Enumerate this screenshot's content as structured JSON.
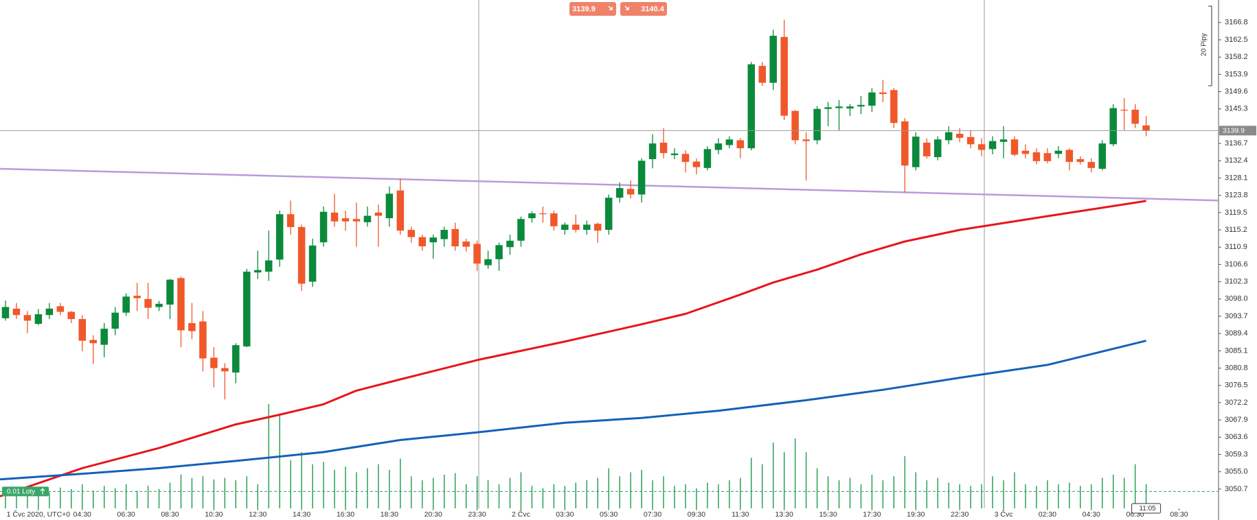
{
  "chart_data": {
    "type": "candlestick",
    "bid": 3139.9,
    "ask": 3140.4,
    "pip_scale_label": "20 Pipy",
    "current_time": "11:05",
    "position": {
      "label": "0.01 Loty",
      "price": 3050.1
    },
    "xlim": [
      -0.5,
      110.6
    ],
    "ylim": [
      3045.9,
      3172.4
    ],
    "yticks": [
      3050.7,
      {
        "value": 3055,
        "label": "3055.0"
      },
      3059.3,
      3063.6,
      3067.9,
      3072.2,
      3076.5,
      3080.8,
      3085.1,
      3089.4,
      3093.7,
      {
        "value": 3098,
        "label": "3098.0"
      },
      3102.3,
      3106.6,
      3110.9,
      3115.2,
      3119.5,
      3123.8,
      3128.1,
      3132.4,
      3136.7,
      3145.3,
      3149.6,
      3153.9,
      3158.2,
      3162.5,
      3166.8
    ],
    "xticks": [
      {
        "value": 3,
        "label": "1 Čvc 2020, UTC+0"
      },
      {
        "value": 7,
        "label": "04:30"
      },
      {
        "value": 11,
        "label": "06:30"
      },
      {
        "value": 15,
        "label": "08:30"
      },
      {
        "value": 19,
        "label": "10:30"
      },
      {
        "value": 23,
        "label": "12:30"
      },
      {
        "value": 27,
        "label": "14:30"
      },
      {
        "value": 31,
        "label": "16:30"
      },
      {
        "value": 35,
        "label": "18:30"
      },
      {
        "value": 39,
        "label": "20:30"
      },
      {
        "value": 43,
        "label": "23:30"
      },
      {
        "value": 47,
        "label": "2 Čvc"
      },
      {
        "value": 51,
        "label": "03:30"
      },
      {
        "value": 55,
        "label": "05:30"
      },
      {
        "value": 59,
        "label": "07:30"
      },
      {
        "value": 63,
        "label": "09:30"
      },
      {
        "value": 67,
        "label": "11:30"
      },
      {
        "value": 71,
        "label": "13:30"
      },
      {
        "value": 75,
        "label": "15:30"
      },
      {
        "value": 79,
        "label": "17:30"
      },
      {
        "value": 83,
        "label": "19:30"
      },
      {
        "value": 87,
        "label": "22:30"
      },
      {
        "value": 91,
        "label": "3 Čvc"
      },
      {
        "value": 95,
        "label": "02:30"
      },
      {
        "value": 99,
        "label": "04:30"
      },
      {
        "value": 103,
        "label": "06:30"
      },
      {
        "value": 107,
        "label": "08:30"
      }
    ],
    "up_color": "#0b8a3c",
    "down_color": "#f0582a",
    "open": [
      3093.2,
      3095.6,
      3094.0,
      3091.8,
      3094.0,
      3096.2,
      3094.8,
      3093.0,
      3087.8,
      3086.6,
      3090.6,
      3094.6,
      3098.8,
      3098.0,
      3096.0,
      3096.6,
      3103.2,
      3092.0,
      3092.4,
      3083.4,
      3080.8,
      3079.7,
      3086.2,
      3104.6,
      3104.8,
      3107.8,
      3119.1,
      3115.9,
      3102.3,
      3112.1,
      3119.5,
      3118.1,
      3117.9,
      3117.1,
      3119.5,
      3118.1,
      3125.0,
      3115.2,
      3113.4,
      3112.1,
      3112.9,
      3115.4,
      3112.3,
      3111.7,
      3106.4,
      3107.9,
      3110.9,
      3112.5,
      3118.1,
      3119.3,
      3119.3,
      3115.2,
      3116.5,
      3115.2,
      3116.7,
      3115.2,
      3123.2,
      3125.4,
      3124.0,
      3132.8,
      3136.9,
      3133.8,
      3134.1,
      3132.2,
      3130.6,
      3135.1,
      3136.3,
      3137.5,
      3135.5,
      3156.0,
      3151.8,
      3163.2,
      3144.8,
      3137.7,
      3137.5,
      3145.3,
      3145.5,
      3145.4,
      3145.9,
      3146.1,
      3149.4,
      3150.0,
      3142.2,
      3130.8,
      3136.9,
      3133.3,
      3137.5,
      3139.1,
      3138.3,
      3136.5,
      3135.3,
      3137.1,
      3137.7,
      3134.9,
      3134.5,
      3134.3,
      3134.1,
      3135.1,
      3132.8,
      3132.1,
      3130.4,
      3136.5,
      3145.1,
      3145.1,
      3141.2
    ],
    "high": [
      3097.6,
      3097.0,
      3095.0,
      3095.5,
      3097.0,
      3097.0,
      3095.0,
      3094.0,
      3089.0,
      3092.0,
      3096.0,
      3099.4,
      3102.0,
      3102.0,
      3097.5,
      3103.0,
      3103.6,
      3097.0,
      3095.0,
      3086.0,
      3082.0,
      3087.0,
      3105.5,
      3110.0,
      3115.0,
      3120.0,
      3122.5,
      3116.5,
      3113.0,
      3121.0,
      3124.2,
      3120.0,
      3122.0,
      3121.0,
      3121.5,
      3126.0,
      3128.0,
      3116.0,
      3114.0,
      3114.0,
      3116.0,
      3117.0,
      3113.0,
      3112.5,
      3110.0,
      3112.0,
      3114.0,
      3118.5,
      3119.8,
      3121.0,
      3120.0,
      3117.0,
      3119.0,
      3117.5,
      3117.0,
      3124.0,
      3127.0,
      3127.5,
      3133.0,
      3139.0,
      3140.5,
      3135.5,
      3135.0,
      3133.0,
      3136.0,
      3138.0,
      3138.5,
      3138.0,
      3157.0,
      3157.0,
      3165.0,
      3167.5,
      3145.0,
      3139.5,
      3146.0,
      3147.0,
      3147.5,
      3146.5,
      3148.5,
      3150.5,
      3152.5,
      3150.5,
      3143.0,
      3139.5,
      3138.0,
      3138.5,
      3141.0,
      3140.5,
      3140.0,
      3138.0,
      3138.5,
      3141.0,
      3138.5,
      3136.5,
      3135.5,
      3135.5,
      3136.0,
      3135.5,
      3133.5,
      3133.0,
      3137.5,
      3146.5,
      3148.0,
      3146.5,
      3143.5
    ],
    "low": [
      3092.6,
      3093.0,
      3089.5,
      3091.5,
      3093.0,
      3094.0,
      3092.0,
      3085.0,
      3081.8,
      3083.5,
      3089.0,
      3093.8,
      3095.0,
      3093.0,
      3095.0,
      3093.0,
      3086.0,
      3088.0,
      3080.0,
      3076.0,
      3073.0,
      3077.0,
      3086.0,
      3103.0,
      3102.5,
      3106.0,
      3114.0,
      3100.0,
      3101.0,
      3111.0,
      3116.0,
      3115.0,
      3111.0,
      3116.0,
      3111.0,
      3116.0,
      3114.0,
      3112.0,
      3110.0,
      3108.0,
      3111.0,
      3110.0,
      3109.8,
      3105.0,
      3105.5,
      3105.0,
      3109.0,
      3111.0,
      3117.0,
      3117.0,
      3115.0,
      3114.0,
      3114.5,
      3114.0,
      3112.0,
      3114.0,
      3122.0,
      3123.0,
      3122.0,
      3130.5,
      3133.0,
      3132.8,
      3129.5,
      3129.0,
      3130.0,
      3134.0,
      3135.5,
      3133.0,
      3135.0,
      3151.0,
      3150.0,
      3142.5,
      3136.5,
      3127.5,
      3136.5,
      3141.0,
      3140.0,
      3143.5,
      3144.0,
      3144.5,
      3147.0,
      3140.5,
      3124.5,
      3130.0,
      3133.0,
      3132.5,
      3136.5,
      3137.0,
      3135.5,
      3133.5,
      3134.0,
      3133.0,
      3133.5,
      3133.0,
      3131.5,
      3131.8,
      3133.0,
      3130.0,
      3131.5,
      3129.5,
      3130.0,
      3136.0,
      3140.0,
      3140.5,
      3138.5
    ],
    "close": [
      3096.0,
      3094.0,
      3092.6,
      3094.2,
      3095.6,
      3094.8,
      3093.0,
      3087.6,
      3087.0,
      3090.6,
      3094.6,
      3098.6,
      3098.2,
      3095.8,
      3096.8,
      3102.8,
      3090.2,
      3090.0,
      3083.2,
      3080.8,
      3080.0,
      3086.5,
      3104.8,
      3105.2,
      3107.6,
      3119.1,
      3115.9,
      3101.8,
      3111.3,
      3119.7,
      3117.3,
      3117.3,
      3117.3,
      3118.7,
      3118.7,
      3124.2,
      3115.0,
      3113.4,
      3111.1,
      3113.3,
      3115.2,
      3111.1,
      3111.0,
      3106.8,
      3107.9,
      3111.4,
      3112.5,
      3117.9,
      3119.3,
      3119.1,
      3116.1,
      3116.5,
      3115.2,
      3116.5,
      3115.0,
      3123.2,
      3125.6,
      3124.0,
      3132.4,
      3136.7,
      3134.3,
      3134.2,
      3132.1,
      3130.8,
      3135.3,
      3136.7,
      3137.7,
      3135.5,
      3156.4,
      3151.8,
      3163.5,
      3143.6,
      3137.5,
      3137.3,
      3145.3,
      3145.7,
      3145.9,
      3145.9,
      3146.3,
      3149.4,
      3149.0,
      3141.8,
      3131.2,
      3138.4,
      3133.5,
      3137.7,
      3139.5,
      3138.1,
      3136.5,
      3135.1,
      3137.3,
      3137.7,
      3133.9,
      3134.1,
      3132.3,
      3132.3,
      3134.9,
      3132.1,
      3132.1,
      3130.6,
      3136.7,
      3145.5,
      3144.9,
      3141.6,
      3139.9
    ],
    "volume": [
      20,
      25,
      18,
      22,
      20,
      26,
      24,
      30,
      22,
      28,
      25,
      30,
      22,
      28,
      24,
      32,
      42,
      38,
      40,
      36,
      38,
      35,
      40,
      30,
      130,
      118,
      60,
      70,
      55,
      58,
      48,
      52,
      45,
      50,
      55,
      48,
      62,
      40,
      35,
      38,
      42,
      44,
      30,
      40,
      35,
      30,
      38,
      45,
      28,
      25,
      30,
      28,
      32,
      35,
      38,
      50,
      40,
      45,
      48,
      35,
      40,
      28,
      30,
      25,
      32,
      30,
      35,
      38,
      63,
      55,
      82,
      70,
      87,
      70,
      50,
      40,
      35,
      38,
      30,
      42,
      35,
      40,
      65,
      45,
      35,
      38,
      32,
      30,
      28,
      30,
      40,
      35,
      45,
      30,
      28,
      35,
      30,
      32,
      28,
      30,
      38,
      42,
      38,
      55,
      30
    ],
    "volume_color": "#1a9a4a",
    "series": [
      {
        "color": "#e8141a",
        "x": [
          -0.5,
          7,
          14,
          21,
          25,
          29,
          32,
          36,
          43,
          51,
          58,
          62,
          67,
          70,
          74,
          78,
          82,
          87,
          95,
          104
        ],
        "values": [
          3048.9,
          3055.9,
          3060.9,
          3066.8,
          3069.2,
          3071.8,
          3075.2,
          3078.0,
          3082.8,
          3087.4,
          3091.7,
          3094.3,
          3099.1,
          3102.1,
          3105.3,
          3109.1,
          3112.3,
          3115.2,
          3118.6,
          3122.4
        ]
      },
      {
        "color": "#1460b8",
        "x": [
          -0.5,
          7,
          14,
          21,
          29,
          36,
          43,
          51,
          58,
          65,
          73,
          80,
          87,
          95,
          104
        ],
        "values": [
          3053.1,
          3054.5,
          3055.9,
          3057.7,
          3059.9,
          3062.9,
          3064.8,
          3067.2,
          3068.4,
          3070.2,
          3072.8,
          3075.4,
          3078.4,
          3081.6,
          3087.6
        ]
      }
    ],
    "trendline": {
      "color": "#b89cd8",
      "x": [
        -0.5,
        110.6
      ],
      "values": [
        3130.4,
        3122.5
      ]
    }
  }
}
